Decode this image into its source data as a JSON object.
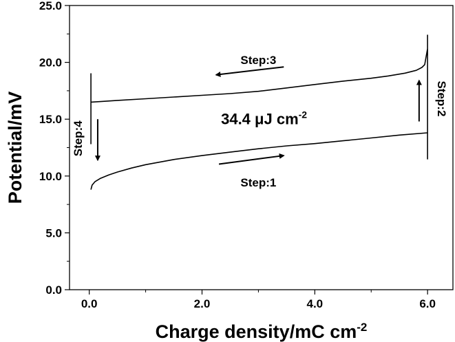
{
  "chart_data": {
    "type": "line",
    "title": "",
    "xlabel": "Charge density/mC cm",
    "xlabel_sup": "-2",
    "ylabel": "Potential/mV",
    "xlim": [
      -0.35,
      6.45
    ],
    "ylim": [
      0,
      25
    ],
    "xticks": [
      0.0,
      2.0,
      4.0,
      6.0
    ],
    "xtick_labels": [
      "0.0",
      "2.0",
      "4.0",
      "6.0"
    ],
    "xminor": [
      1.0,
      3.0,
      5.0
    ],
    "yticks": [
      0,
      5,
      10,
      15,
      20,
      25
    ],
    "ytick_labels": [
      "0.0",
      "5.0",
      "10.0",
      "15.0",
      "20.0",
      "25.0"
    ],
    "yminor": [
      2.5,
      7.5,
      12.5,
      17.5,
      22.5
    ],
    "grid": false,
    "series": [
      {
        "x": [
          0.03,
          0.05,
          0.1,
          0.2,
          0.35,
          0.5,
          0.75,
          1.0,
          1.5,
          2.0,
          2.5,
          3.0,
          3.5,
          4.0,
          4.5,
          5.0,
          5.5,
          6.0,
          6.0,
          6.0,
          6.0,
          5.95,
          5.9,
          5.8,
          5.6,
          5.3,
          5.0,
          4.5,
          4.0,
          3.5,
          3.0,
          2.5,
          2.0,
          1.5,
          1.0,
          0.5,
          0.2,
          0.03,
          0.03,
          0.03
        ],
        "y": [
          8.8,
          9.2,
          9.5,
          9.8,
          10.1,
          10.35,
          10.7,
          11.0,
          11.45,
          11.8,
          12.1,
          12.4,
          12.65,
          12.85,
          13.1,
          13.35,
          13.6,
          13.8,
          11.5,
          22.4,
          21.2,
          19.8,
          19.55,
          19.3,
          19.05,
          18.8,
          18.6,
          18.35,
          18.05,
          17.75,
          17.45,
          17.25,
          17.1,
          16.95,
          16.8,
          16.65,
          16.55,
          16.5,
          19.0,
          12.8
        ],
        "color": "#000000"
      }
    ],
    "annotations": [
      {
        "text": "Step:1",
        "x": 3.0,
        "y": 9.4
      },
      {
        "text": "Step:2",
        "x": 6.25,
        "y": 16.8,
        "rotation": 90
      },
      {
        "text": "Step:3",
        "x": 3.0,
        "y": 20.2
      },
      {
        "text": "Step:4",
        "x": -0.2,
        "y": 13.3,
        "rotation": -90
      }
    ],
    "arrows": [
      {
        "from": [
          2.3,
          11.05
        ],
        "to": [
          3.45,
          11.8
        ]
      },
      {
        "from": [
          5.85,
          14.8
        ],
        "to": [
          5.85,
          18.4
        ]
      },
      {
        "from": [
          3.45,
          19.6
        ],
        "to": [
          2.25,
          18.9
        ]
      },
      {
        "from": [
          0.15,
          15.0
        ],
        "to": [
          0.15,
          11.4
        ]
      }
    ],
    "energy_label": {
      "main": "34.4 μJ cm",
      "sup": "-2",
      "x": 3.1,
      "y": 15.05
    }
  }
}
